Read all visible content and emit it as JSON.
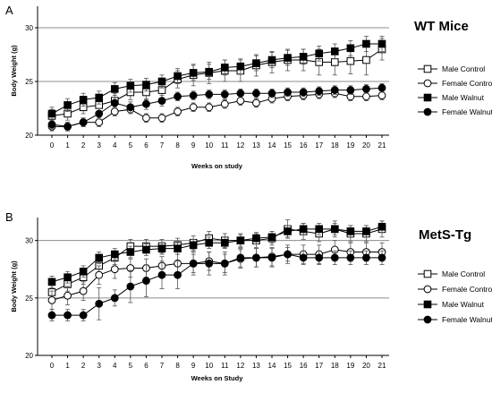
{
  "chart_data": [
    {
      "panel_label": "A",
      "type": "line",
      "title": "WT Mice",
      "xlabel": "Weeks on study",
      "ylabel": "Body Weight (g)",
      "ylim": [
        20,
        32
      ],
      "yticks": [
        20,
        25,
        30
      ],
      "grid": "horizontal",
      "legend_position": "right",
      "x": [
        0,
        1,
        2,
        3,
        4,
        5,
        6,
        7,
        8,
        9,
        10,
        11,
        12,
        13,
        14,
        15,
        16,
        17,
        18,
        19,
        20,
        21
      ],
      "series": [
        {
          "name": "Male Control",
          "marker": "open-square",
          "values": [
            21.8,
            22.0,
            22.6,
            22.8,
            23.2,
            24.0,
            24.0,
            24.2,
            25.2,
            25.6,
            25.8,
            26.0,
            26.0,
            26.5,
            26.8,
            27.0,
            27.0,
            26.8,
            26.8,
            26.9,
            27.0,
            28.0
          ],
          "errors": [
            0.6,
            0.6,
            0.6,
            0.6,
            0.7,
            0.7,
            0.7,
            0.7,
            0.8,
            1.0,
            1.0,
            1.0,
            1.0,
            1.0,
            1.0,
            1.0,
            1.0,
            1.2,
            1.2,
            1.2,
            1.4,
            1.0
          ]
        },
        {
          "name": "Female Control",
          "marker": "open-circle",
          "values": [
            20.8,
            20.8,
            21.2,
            21.2,
            22.2,
            22.4,
            21.6,
            21.6,
            22.2,
            22.6,
            22.6,
            22.9,
            23.2,
            23.0,
            23.4,
            23.6,
            23.7,
            23.8,
            23.9,
            23.6,
            23.6,
            23.7
          ],
          "errors": [
            0.4,
            0.4,
            0.4,
            0.4,
            0.4,
            0.4,
            0.4,
            0.4,
            0.4,
            0.4,
            0.4,
            0.4,
            0.4,
            0.4,
            0.4,
            0.4,
            0.4,
            0.4,
            0.4,
            0.4,
            0.4,
            0.4
          ]
        },
        {
          "name": "Male Walnut",
          "marker": "filled-square",
          "values": [
            22.0,
            22.8,
            23.3,
            23.5,
            24.3,
            24.6,
            24.7,
            25.0,
            25.5,
            25.8,
            25.9,
            26.3,
            26.4,
            26.7,
            27.0,
            27.2,
            27.3,
            27.6,
            27.8,
            28.1,
            28.5,
            28.5
          ],
          "errors": [
            0.6,
            0.6,
            0.6,
            0.6,
            0.6,
            0.6,
            0.6,
            0.6,
            0.7,
            0.7,
            0.7,
            0.7,
            0.7,
            0.7,
            0.7,
            0.7,
            0.7,
            0.7,
            0.7,
            0.7,
            0.7,
            0.7
          ]
        },
        {
          "name": "Female Walnut",
          "marker": "filled-circle",
          "values": [
            21.0,
            20.8,
            21.2,
            22.0,
            23.0,
            22.6,
            22.9,
            23.2,
            23.6,
            23.7,
            23.8,
            23.8,
            23.9,
            23.9,
            23.9,
            24.0,
            24.0,
            24.1,
            24.2,
            24.2,
            24.3,
            24.4
          ],
          "errors": [
            0.4,
            0.4,
            0.4,
            0.5,
            0.5,
            0.5,
            0.5,
            0.5,
            0.4,
            0.4,
            0.4,
            0.4,
            0.4,
            0.4,
            0.4,
            0.4,
            0.4,
            0.4,
            0.4,
            0.4,
            0.4,
            0.4
          ]
        }
      ]
    },
    {
      "panel_label": "B",
      "type": "line",
      "title": "MetS-Tg",
      "xlabel": "Weeks on Study",
      "ylabel": "Body Weight (g)",
      "ylim": [
        20,
        32
      ],
      "yticks": [
        20,
        25,
        30
      ],
      "grid": "horizontal",
      "legend_position": "right",
      "x": [
        0,
        1,
        2,
        3,
        4,
        5,
        6,
        7,
        8,
        9,
        10,
        11,
        12,
        13,
        14,
        15,
        16,
        17,
        18,
        19,
        20,
        21
      ],
      "series": [
        {
          "name": "Male Control",
          "marker": "open-square",
          "values": [
            25.5,
            26.2,
            26.8,
            27.8,
            28.5,
            29.5,
            29.5,
            29.5,
            29.6,
            29.8,
            30.2,
            30.0,
            30.0,
            30.0,
            30.2,
            31.0,
            30.8,
            30.6,
            31.0,
            30.6,
            30.6,
            31.0
          ],
          "errors": [
            0.6,
            0.6,
            0.6,
            0.6,
            0.6,
            0.6,
            0.6,
            0.6,
            0.6,
            0.6,
            0.6,
            0.6,
            0.6,
            0.6,
            0.6,
            0.8,
            0.7,
            0.7,
            0.7,
            0.7,
            0.7,
            0.7
          ]
        },
        {
          "name": "Female Control",
          "marker": "open-circle",
          "values": [
            24.8,
            25.2,
            25.6,
            27.0,
            27.5,
            27.6,
            27.6,
            27.8,
            28.0,
            28.0,
            28.2,
            28.0,
            28.4,
            28.5,
            28.6,
            28.8,
            28.8,
            28.8,
            29.2,
            29.0,
            29.0,
            29.0
          ],
          "errors": [
            0.8,
            0.8,
            0.8,
            0.8,
            0.8,
            0.8,
            0.8,
            0.8,
            0.8,
            0.8,
            0.8,
            0.8,
            0.8,
            0.8,
            0.8,
            0.8,
            0.8,
            0.8,
            0.8,
            0.8,
            0.8,
            0.8
          ]
        },
        {
          "name": "Male Walnut",
          "marker": "filled-square",
          "values": [
            26.4,
            26.8,
            27.3,
            28.5,
            28.8,
            29.0,
            29.2,
            29.3,
            29.3,
            29.6,
            29.8,
            29.8,
            30.0,
            30.2,
            30.3,
            30.8,
            31.0,
            31.0,
            31.0,
            30.8,
            30.8,
            31.2
          ],
          "errors": [
            0.5,
            0.5,
            0.5,
            0.5,
            0.5,
            0.5,
            0.5,
            0.5,
            0.5,
            0.5,
            0.5,
            0.5,
            0.5,
            0.5,
            0.5,
            0.5,
            0.5,
            0.5,
            0.5,
            0.5,
            0.5,
            0.5
          ]
        },
        {
          "name": "Female Walnut",
          "marker": "filled-circle",
          "values": [
            23.5,
            23.5,
            23.5,
            24.5,
            25.0,
            26.0,
            26.5,
            27.0,
            27.0,
            28.0,
            28.0,
            28.0,
            28.5,
            28.5,
            28.5,
            28.8,
            28.5,
            28.5,
            28.5,
            28.5,
            28.5,
            28.5
          ],
          "errors": [
            0.5,
            0.5,
            0.5,
            1.4,
            0.7,
            1.4,
            1.4,
            1.2,
            1.2,
            1.0,
            1.0,
            1.0,
            0.8,
            0.8,
            0.8,
            0.6,
            0.6,
            0.6,
            0.6,
            0.6,
            0.6,
            0.6
          ]
        }
      ]
    }
  ]
}
